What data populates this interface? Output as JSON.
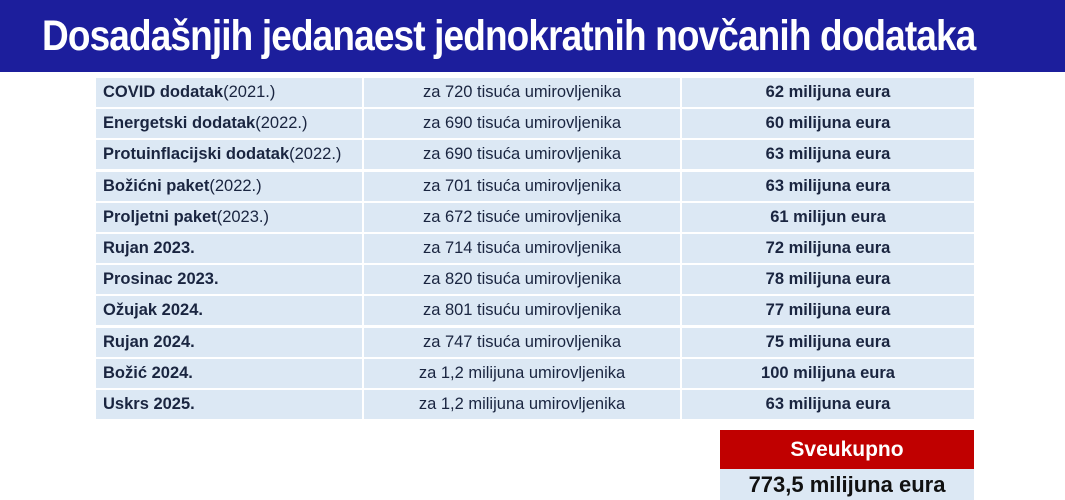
{
  "title": "Dosadašnjih jedanaest jednokratnih novčanih dodataka",
  "rows": [
    {
      "name": "COVID dodatak",
      "year": " (2021.)",
      "recipients": "za 720 tisuća umirovljenika",
      "amount": "62 milijuna eura"
    },
    {
      "name": "Energetski dodatak",
      "year": " (2022.)",
      "recipients": "za 690 tisuća umirovljenika",
      "amount": "60 milijuna eura"
    },
    {
      "name": "Protuinflacijski dodatak",
      "year": " (2022.)",
      "recipients": "za 690 tisuća umirovljenika",
      "amount": "63 milijuna eura"
    },
    {
      "name": "Božićni paket",
      "year": " (2022.)",
      "recipients": "za 701 tisuća umirovljenika",
      "amount": "63 milijuna eura"
    },
    {
      "name": "Proljetni paket",
      "year": " (2023.)",
      "recipients": "za 672 tisuće umirovljenika",
      "amount": "61 milijun eura"
    },
    {
      "name": "Rujan 2023.",
      "year": "",
      "recipients": "za 714 tisuća umirovljenika",
      "amount": "72 milijuna eura"
    },
    {
      "name": "Prosinac 2023.",
      "year": "",
      "recipients": "za 820 tisuća umirovljenika",
      "amount": "78 milijuna eura"
    },
    {
      "name": "Ožujak 2024.",
      "year": "",
      "recipients": "za 801 tisuću umirovljenika",
      "amount": "77 milijuna eura"
    },
    {
      "name": "Rujan 2024.",
      "year": "",
      "recipients": "za 747 tisuća umirovljenika",
      "amount": "75 milijuna eura"
    },
    {
      "name": "Božić 2024.",
      "year": "",
      "recipients": "za 1,2 milijuna umirovljenika",
      "amount": "100 milijuna eura"
    },
    {
      "name": "Uskrs 2025.",
      "year": "",
      "recipients": "za 1,2 milijuna umirovljenika",
      "amount": "63 milijuna eura"
    }
  ],
  "total": {
    "label": "Sveukupno",
    "value": "773,5 milijuna eura"
  },
  "colors": {
    "title_bg": "#1c1e9c",
    "row_bg": "#dce8f4",
    "total_header_bg": "#c00000"
  }
}
